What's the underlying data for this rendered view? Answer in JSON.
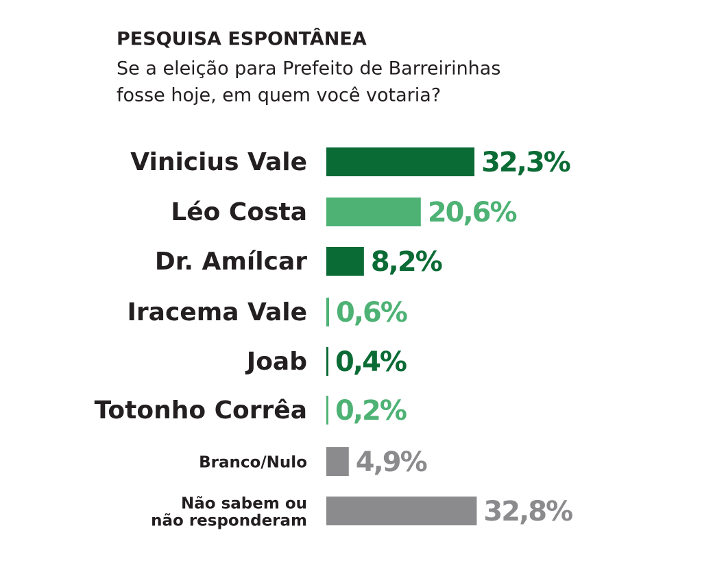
{
  "chart_data": {
    "type": "bar",
    "orientation": "horizontal",
    "title": "PESQUISA ESPONTÂNEA",
    "subtitle": [
      "Se a eleição para Prefeito de Barreirinhas",
      "fosse hoje, em quem você votaria?"
    ],
    "categories": [
      "Vinicius Vale",
      "Léo Costa",
      "Dr. Amílcar",
      "Iracema Vale",
      "Joab",
      "Totonho Corrêa",
      "Branco/Nulo",
      "Não sabem ou\nnão responderam"
    ],
    "values": [
      32.3,
      20.6,
      8.2,
      0.6,
      0.4,
      0.2,
      4.9,
      32.8
    ],
    "value_labels": [
      "32,3%",
      "20,6%",
      "8,2%",
      "0,6%",
      "0,4%",
      "0,2%",
      "4,9%",
      "32,8%"
    ],
    "colors": [
      "#0b6b35",
      "#4db274",
      "#0b6b35",
      "#4db274",
      "#0b6b35",
      "#4db274",
      "#8b8b8e",
      "#8b8b8e"
    ]
  }
}
